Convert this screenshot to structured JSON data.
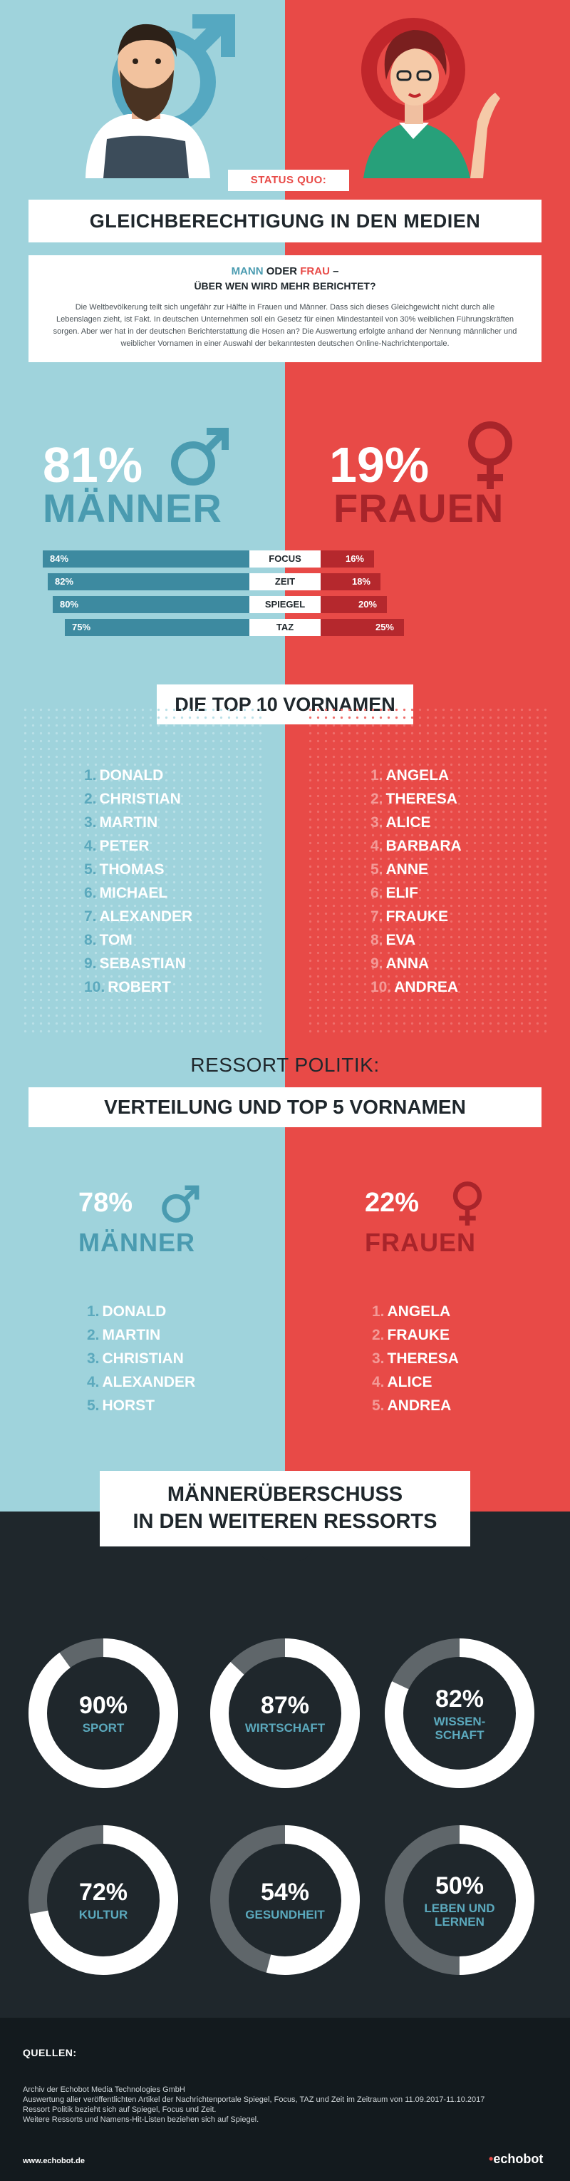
{
  "header": {
    "status_tag": "STATUS QUO:",
    "title": "GLEICHBERECHTIGUNG IN DEN MEDIEN"
  },
  "intro": {
    "q_man": "MANN",
    "q_mid": "ODER",
    "q_woman": "FRAU",
    "q_dash": "–",
    "q_line2": "ÜBER WEN WIRD MEHR BERICHTET?",
    "body": "Die Weltbevölkerung teilt sich ungefähr zur Hälfte in Frauen und Männer. Dass sich dieses Gleichgewicht nicht durch alle Lebenslagen zieht, ist Fakt. In deutschen Unternehmen soll ein Gesetz für einen Mindestanteil von 30% weiblichen Führungskräften sorgen. Aber wer hat in der deutschen Berichterstattung die Hosen an? Die Auswertung erfolgte anhand der Nennung männlicher und weiblicher Vornamen in einer Auswahl der bekanntesten deutschen Online-Nachrichtenportale."
  },
  "overall": {
    "men_pct": "81%",
    "men_label": "MÄNNER",
    "women_pct": "19%",
    "women_label": "FRAUEN"
  },
  "portals": [
    {
      "name": "FOCUS",
      "men": "84%",
      "women": "16%",
      "men_value": 84,
      "women_value": 16
    },
    {
      "name": "ZEIT",
      "men": "82%",
      "women": "18%",
      "men_value": 82,
      "women_value": 18
    },
    {
      "name": "SPIEGEL",
      "men": "80%",
      "women": "20%",
      "men_value": 80,
      "women_value": 20
    },
    {
      "name": "TAZ",
      "men": "75%",
      "women": "25%",
      "men_value": 75,
      "women_value": 25
    }
  ],
  "top10": {
    "title": "DIE TOP 10 VORNAMEN",
    "men": [
      {
        "rank": "1.",
        "name": "DONALD"
      },
      {
        "rank": "2.",
        "name": "CHRISTIAN"
      },
      {
        "rank": "3.",
        "name": "MARTIN"
      },
      {
        "rank": "4.",
        "name": "PETER"
      },
      {
        "rank": "5.",
        "name": "THOMAS"
      },
      {
        "rank": "6.",
        "name": "MICHAEL"
      },
      {
        "rank": "7.",
        "name": "ALEXANDER"
      },
      {
        "rank": "8.",
        "name": "TOM"
      },
      {
        "rank": "9.",
        "name": "SEBASTIAN"
      },
      {
        "rank": "10.",
        "name": "ROBERT"
      }
    ],
    "women": [
      {
        "rank": "1.",
        "name": "ANGELA"
      },
      {
        "rank": "2.",
        "name": "THERESA"
      },
      {
        "rank": "3.",
        "name": "ALICE"
      },
      {
        "rank": "4.",
        "name": "BARBARA"
      },
      {
        "rank": "5.",
        "name": "ANNE"
      },
      {
        "rank": "6.",
        "name": "ELIF"
      },
      {
        "rank": "7.",
        "name": "FRAUKE"
      },
      {
        "rank": "8.",
        "name": "EVA"
      },
      {
        "rank": "9.",
        "name": "ANNA"
      },
      {
        "rank": "10.",
        "name": "ANDREA"
      }
    ]
  },
  "politik": {
    "title_line1": "RESSORT POLITIK:",
    "title_line2": "VERTEILUNG UND TOP 5 VORNAMEN",
    "men_pct": "78%",
    "men_label": "MÄNNER",
    "women_pct": "22%",
    "women_label": "FRAUEN",
    "men": [
      {
        "rank": "1.",
        "name": "DONALD"
      },
      {
        "rank": "2.",
        "name": "MARTIN"
      },
      {
        "rank": "3.",
        "name": "CHRISTIAN"
      },
      {
        "rank": "4.",
        "name": "ALEXANDER"
      },
      {
        "rank": "5.",
        "name": "HORST"
      }
    ],
    "women": [
      {
        "rank": "1.",
        "name": "ANGELA"
      },
      {
        "rank": "2.",
        "name": "FRAUKE"
      },
      {
        "rank": "3.",
        "name": "THERESA"
      },
      {
        "rank": "4.",
        "name": "ALICE"
      },
      {
        "rank": "5.",
        "name": "ANDREA"
      }
    ]
  },
  "surplus": {
    "title_line1": "MÄNNERÜBERSCHUSS",
    "title_line2": "IN DEN WEITEREN RESSORTS",
    "items": [
      {
        "pct": "90%",
        "value": 90,
        "label": "SPORT"
      },
      {
        "pct": "87%",
        "value": 87,
        "label": "WIRTSCHAFT"
      },
      {
        "pct": "82%",
        "value": 82,
        "label": "WISSEN-\nSCHAFT"
      },
      {
        "pct": "72%",
        "value": 72,
        "label": "KULTUR"
      },
      {
        "pct": "54%",
        "value": 54,
        "label": "GESUNDHEIT"
      },
      {
        "pct": "50%",
        "value": 50,
        "label": "LEBEN UND\nLERNEN"
      }
    ]
  },
  "sources": {
    "title": "QUELLEN:",
    "lines": [
      "Archiv der Echobot Media Technologies GmbH",
      "Auswertung aller veröffentlichten Artikel der Nachrichtenportale Spiegel, Focus, TAZ und Zeit im Zeitraum von 11.09.2017-11.10.2017",
      "Ressort Politik bezieht sich auf Spiegel, Focus und Zeit.",
      "Weitere Ressorts und Namens-Hit-Listen beziehen sich auf Spiegel."
    ],
    "url": "www.echobot.de",
    "logo": "echobot"
  },
  "colors": {
    "men": "#9fd3dc",
    "men_accent": "#4a9bb0",
    "women": "#e84a47",
    "women_accent": "#a8242a",
    "dark": "#1f272c"
  }
}
